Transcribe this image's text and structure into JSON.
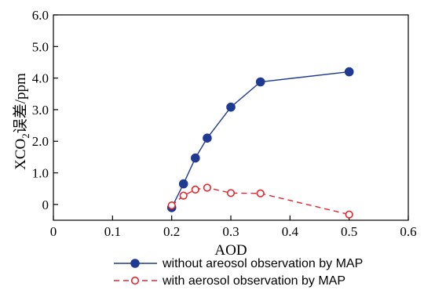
{
  "chart_data": {
    "type": "line",
    "title": "",
    "xlabel": "AOD",
    "ylabel_main": "XCO",
    "ylabel_sub": "2",
    "ylabel_rest": "误差/ppm",
    "xlim": [
      0,
      0.6
    ],
    "ylim": [
      -0.5,
      6.0
    ],
    "x_ticks": [
      0,
      0.1,
      0.2,
      0.3,
      0.4,
      0.5,
      0.6
    ],
    "x_tick_labels": [
      "0",
      "0.1",
      "0.2",
      "0.3",
      "0.4",
      "0.5",
      "0.6"
    ],
    "y_ticks": [
      0,
      1,
      2,
      3,
      4,
      5,
      6
    ],
    "y_tick_labels": [
      "0",
      "1.0",
      "2.0",
      "3.0",
      "4.0",
      "5.0",
      "6.0"
    ],
    "grid": false,
    "legend_position": "bottom",
    "series": [
      {
        "name": "without areosol observation by MAP",
        "color": "#1f3a93",
        "marker": "filled-circle",
        "line_style": "solid",
        "x": [
          0.2,
          0.22,
          0.24,
          0.26,
          0.3,
          0.35,
          0.5
        ],
        "y": [
          -0.1,
          0.65,
          1.47,
          2.1,
          3.08,
          3.88,
          4.2
        ]
      },
      {
        "name": "with aerosol observation by MAP",
        "color": "#e8242b",
        "marker": "open-circle",
        "line_style": "dashed",
        "x": [
          0.2,
          0.22,
          0.24,
          0.26,
          0.3,
          0.35,
          0.5
        ],
        "y": [
          -0.03,
          0.28,
          0.47,
          0.53,
          0.36,
          0.35,
          -0.32
        ]
      }
    ]
  }
}
